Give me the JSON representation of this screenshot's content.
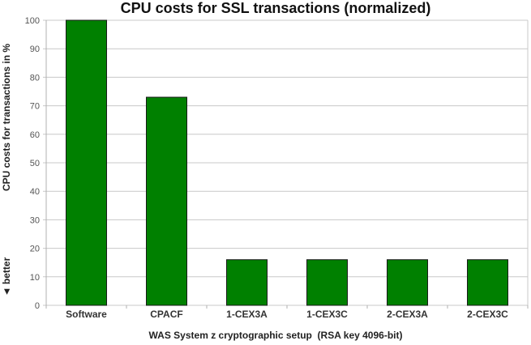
{
  "chart_data": {
    "type": "bar",
    "title": "CPU costs for SSL transactions (normalized)",
    "xlabel": "WAS System z cryptographic setup  (RSA key 4096-bit)",
    "ylabel": "CPU costs for transactions in %",
    "ylabel_note": "◄ better",
    "categories": [
      "Software",
      "CPACF",
      "1-CEX3A",
      "1-CEX3C",
      "2-CEX3A",
      "2-CEX3C"
    ],
    "values": [
      100,
      73,
      16,
      16,
      16,
      16
    ],
    "ylim": [
      0,
      100
    ],
    "yticks": [
      0,
      10,
      20,
      30,
      40,
      50,
      60,
      70,
      80,
      90,
      100
    ],
    "grid": true,
    "legend": "none",
    "bar_color": "#008000"
  }
}
